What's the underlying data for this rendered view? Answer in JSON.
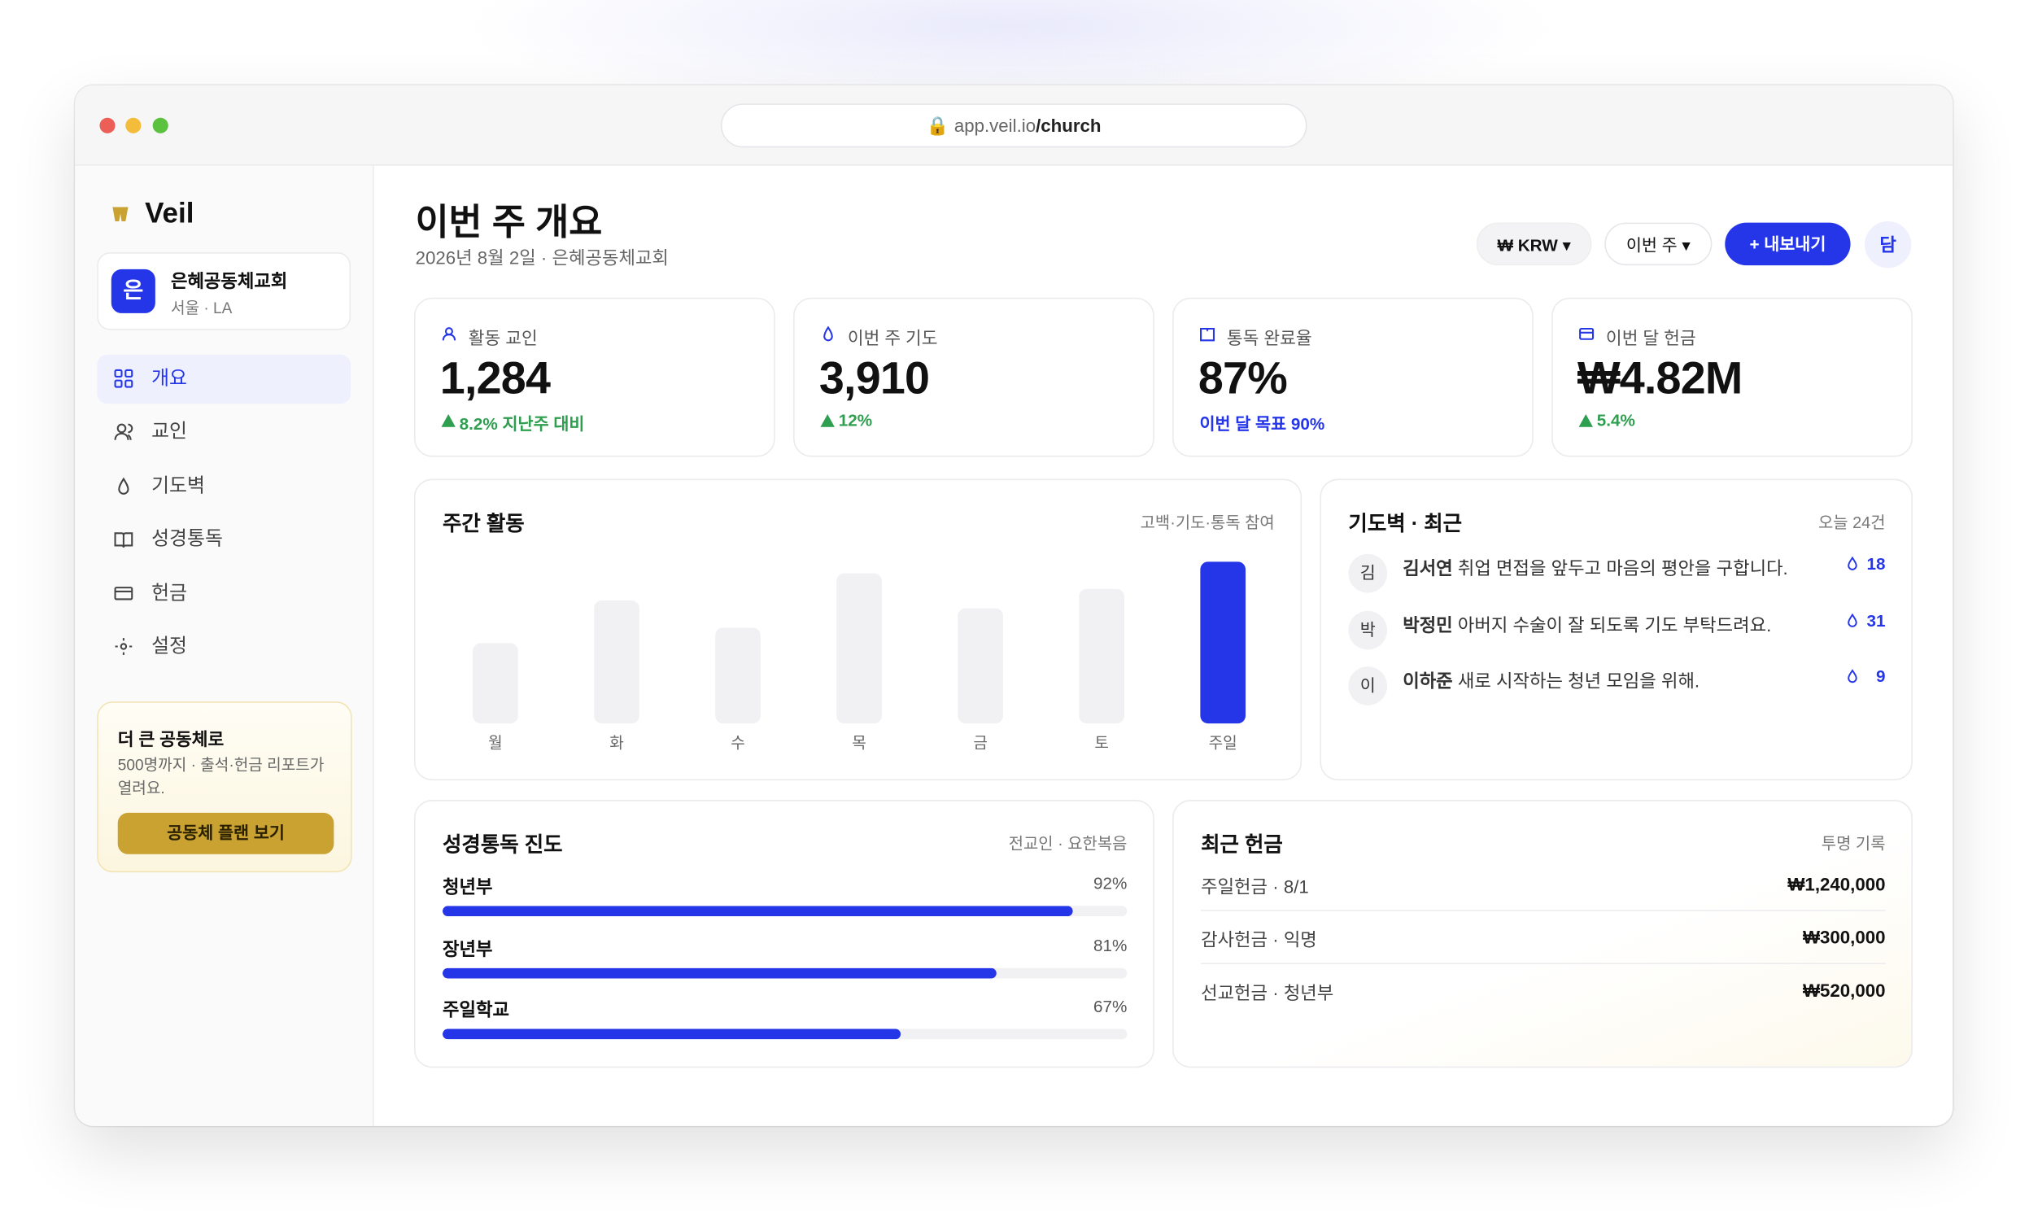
{
  "browser": {
    "url_host": "app.veil.io",
    "url_path": "/church"
  },
  "sidebar": {
    "brand": "Veil",
    "org": {
      "initial": "은",
      "name": "은혜공동체교회",
      "location": "서울 · LA"
    },
    "nav": [
      "개요",
      "교인",
      "기도벽",
      "성경통독",
      "헌금",
      "설정"
    ],
    "promo": {
      "title": "더 큰 공동체로",
      "text": "500명까지 · 출석·헌금 리포트가 열려요.",
      "button": "공동체 플랜 보기"
    }
  },
  "header": {
    "title": "이번 주 개요",
    "subtitle": "2026년 8월 2일 · 은혜공동체교회",
    "currency": "₩ KRW",
    "period": "이번 주",
    "export": "+ 내보내기",
    "avatar": "담"
  },
  "kpis": [
    {
      "label": "활동 교인",
      "value": "1,284",
      "delta": "8.2% 지난주 대비"
    },
    {
      "label": "이번 주 기도",
      "value": "3,910",
      "delta": "12%"
    },
    {
      "label": "통독 완료율",
      "value": "87%",
      "note": "이번 달 목표 90%"
    },
    {
      "label": "이번 달 헌금",
      "value": "₩4.82M",
      "delta": "5.4%"
    }
  ],
  "weekly_activity": {
    "title": "주간 활동",
    "subtitle": "고백·기도·통독 참여",
    "categories": [
      "월",
      "화",
      "수",
      "목",
      "금",
      "토",
      "주일"
    ],
    "values": [
      62,
      95,
      74,
      116,
      89,
      104,
      125
    ],
    "colors": [
      "#f1f1f3",
      "#f1f1f3",
      "#f1f1f3",
      "#f1f1f3",
      "#f1f1f3",
      "#f1f1f3",
      "#2536e8"
    ],
    "ylim": [
      0,
      130
    ]
  },
  "prayer_wall": {
    "title": "기도벽 · 최근",
    "meta": "오늘 24건",
    "items": [
      {
        "initial": "김",
        "name": "김서연",
        "text": "취업 면접을 앞두고 마음의 평안을 구합니다.",
        "count": "18"
      },
      {
        "initial": "박",
        "name": "박정민",
        "text": "아버지 수술이 잘 되도록 기도 부탁드려요.",
        "count": "31"
      },
      {
        "initial": "이",
        "name": "이하준",
        "text": "새로 시작하는 청년 모임을 위해.",
        "count": "9"
      }
    ]
  },
  "bible_reading": {
    "title": "성경통독 진도",
    "meta": "전교인 · 요한복음",
    "xlim": [
      0,
      100
    ],
    "groups": [
      {
        "name": "청년부",
        "value": 92,
        "value_label": "92%"
      },
      {
        "name": "장년부",
        "value": 81,
        "value_label": "81%"
      },
      {
        "name": "주일학교",
        "value": 67,
        "value_label": "67%"
      }
    ]
  },
  "offerings": {
    "title": "최근 헌금",
    "meta": "투명 기록",
    "rows": [
      {
        "label": "주일헌금 · 8/1",
        "amount": "₩1,240,000"
      },
      {
        "label": "감사헌금 · 익명",
        "amount": "₩300,000"
      },
      {
        "label": "선교헌금 · 청년부",
        "amount": "₩520,000"
      }
    ]
  }
}
